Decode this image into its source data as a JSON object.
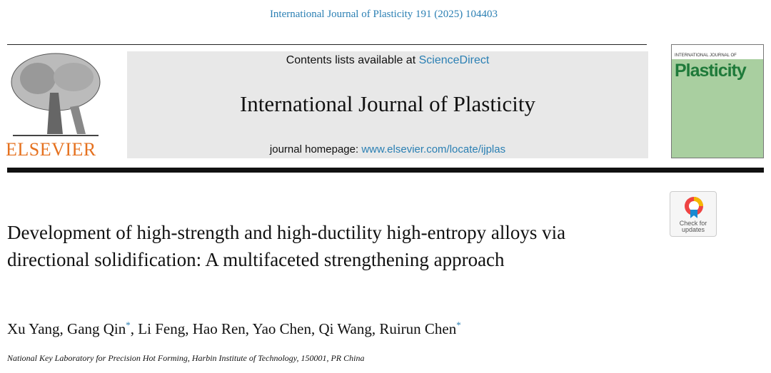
{
  "header": {
    "citation": "International Journal of Plasticity 191 (2025) 104403",
    "contents_prefix": "Contents lists available at",
    "sciencedirect": "ScienceDirect",
    "journal_name": "International Journal of Plasticity",
    "homepage_prefix": "journal homepage:",
    "homepage_url": "www.elsevier.com/locate/ijplas",
    "publisher": "ELSEVIER",
    "cover_top": "INTERNATIONAL JOURNAL OF",
    "cover_title": "Plasticity"
  },
  "badge": {
    "label": "Check for updates"
  },
  "article": {
    "title": "Development of high-strength and high-ductility high-entropy alloys via directional solidification: A multifaceted strengthening approach",
    "author_separator": ",",
    "authors": [
      {
        "name": "Xu Yang"
      },
      {
        "name": "Gang Qin",
        "mark": "*"
      },
      {
        "name": "Li Feng"
      },
      {
        "name": "Hao Ren"
      },
      {
        "name": "Yao Chen"
      },
      {
        "name": "Qi Wang"
      },
      {
        "name": "Ruirun Chen",
        "mark": "*"
      }
    ],
    "affiliation": "National Key Laboratory for Precision Hot Forming, Harbin Institute of Technology, 150001, PR China"
  }
}
